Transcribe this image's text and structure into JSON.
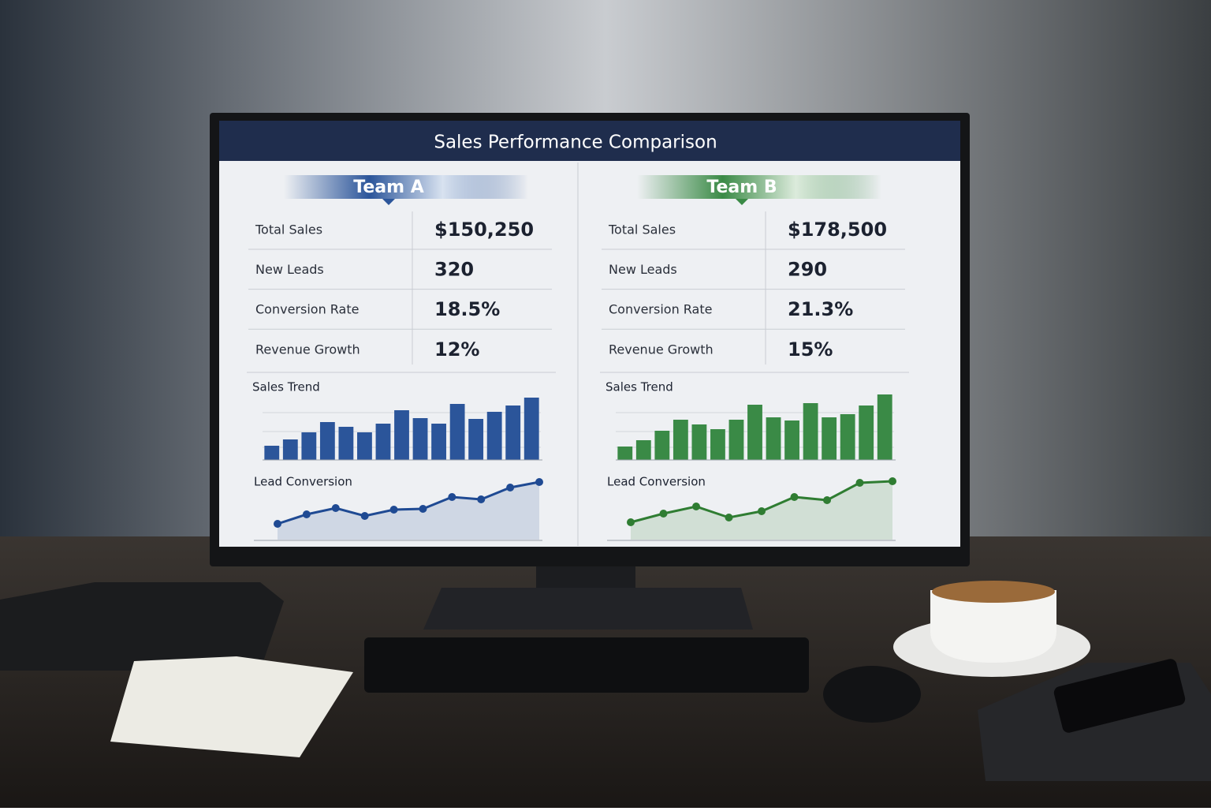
{
  "header": {
    "title": "Sales Performance Comparison"
  },
  "teams": [
    {
      "name": "Team A",
      "color": "#2b559a",
      "metrics": [
        {
          "label": "Total Sales",
          "value": "$150,250"
        },
        {
          "label": "New Leads",
          "value": "320"
        },
        {
          "label": "Conversion Rate",
          "value": "18.5%"
        },
        {
          "label": "Revenue Growth",
          "value": "12%"
        }
      ]
    },
    {
      "name": "Team B",
      "color": "#3a8a46",
      "metrics": [
        {
          "label": "Total Sales",
          "value": "$178,500"
        },
        {
          "label": "New Leads",
          "value": "290"
        },
        {
          "label": "Conversion Rate",
          "value": "21.3%"
        },
        {
          "label": "Revenue Growth",
          "value": "15%"
        }
      ]
    }
  ],
  "chart_data": [
    {
      "type": "bar",
      "title": "Sales Trend",
      "color": "#2b559a",
      "ylim": [
        0,
        100
      ],
      "values": [
        18,
        26,
        35,
        48,
        42,
        35,
        46,
        63,
        53,
        46,
        71,
        52,
        61,
        69,
        79
      ]
    },
    {
      "type": "line",
      "title": "Lead Conversion",
      "color": "#1f4a93",
      "ylim": [
        0,
        100
      ],
      "values": [
        21,
        33,
        41,
        31,
        39,
        40,
        55,
        52,
        67,
        74
      ]
    },
    {
      "type": "bar",
      "title": "Sales Trend",
      "color": "#3a8a46",
      "ylim": [
        0,
        100
      ],
      "values": [
        17,
        25,
        37,
        51,
        45,
        39,
        51,
        70,
        54,
        50,
        72,
        54,
        58,
        69,
        83
      ]
    },
    {
      "type": "line",
      "title": "Lead Conversion",
      "color": "#2f7d32",
      "ylim": [
        0,
        100
      ],
      "values": [
        23,
        34,
        43,
        29,
        37,
        55,
        51,
        73,
        75
      ]
    }
  ]
}
